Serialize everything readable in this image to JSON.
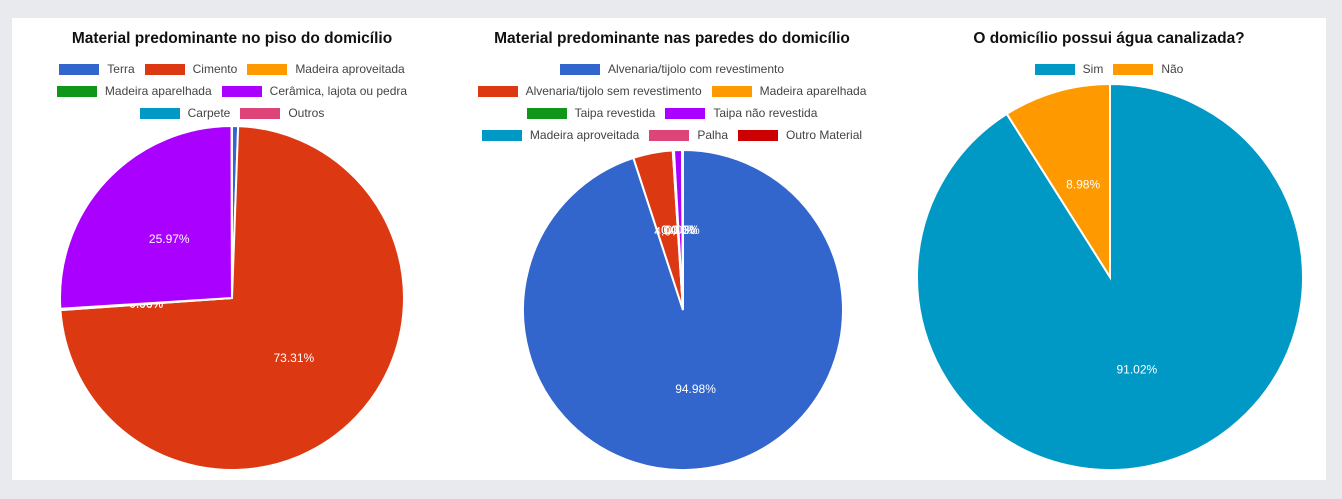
{
  "chart_data": [
    {
      "type": "pie",
      "title": "Material predominante no piso do domicílio",
      "categories": [
        "Terra",
        "Cimento",
        "Madeira aproveitada",
        "Madeira aparelhada",
        "Cerâmica, lajota ou pedra",
        "Carpete",
        "Outros"
      ],
      "values": [
        0.57,
        73.31,
        0.06,
        0.06,
        25.97,
        0.01,
        0.02
      ],
      "labels": [
        "0.57%",
        "73.31%",
        "0.06%",
        "0.06%",
        "25.97%",
        "",
        ""
      ],
      "colors": [
        "#3366cc",
        "#dc3912",
        "#ff9900",
        "#109618",
        "#aa00ff",
        "#0099c6",
        "#dd4477"
      ],
      "legend_position": "top"
    },
    {
      "type": "pie",
      "title": "Material predominante nas paredes do domicílio",
      "categories": [
        "Alvenaria/tijolo com revestimento",
        "Alvenaria/tijolo sem revestimento",
        "Madeira aparelhada",
        "Taipa revestida",
        "Taipa não revestida",
        "Madeira aproveitada",
        "Palha",
        "Outro Material"
      ],
      "values": [
        94.98,
        4.0,
        0.06,
        0.06,
        0.8,
        0.06,
        0.02,
        0.02
      ],
      "labels": [
        "94.98%",
        "4.0%",
        "0.06%",
        "0.06%",
        "0.80%",
        "0.06%",
        "",
        ""
      ],
      "colors": [
        "#3366cc",
        "#dc3912",
        "#ff9900",
        "#109618",
        "#aa00ff",
        "#0099c6",
        "#dd4477",
        "#cc0000"
      ],
      "legend_position": "top"
    },
    {
      "type": "pie",
      "title": "O domicílio possui água canalizada?",
      "categories": [
        "Sim",
        "Não"
      ],
      "values": [
        91.02,
        8.98
      ],
      "labels": [
        "91.02%",
        "8.98%"
      ],
      "colors": [
        "#0099c6",
        "#ff9900"
      ],
      "legend_position": "top"
    }
  ]
}
